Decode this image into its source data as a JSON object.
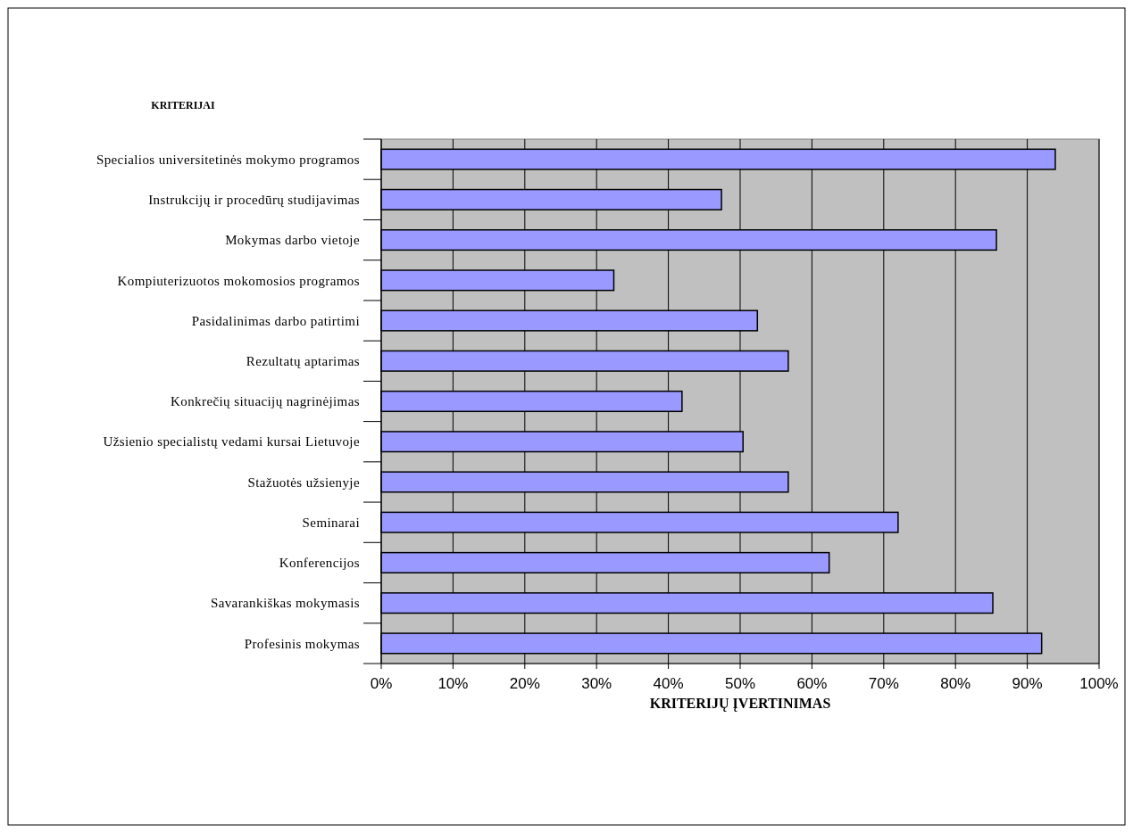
{
  "chart_data": {
    "type": "bar",
    "orientation": "horizontal",
    "ylabel": "KRITERIJAI",
    "xlabel": "KRITERIJŲ ĮVERTINIMAS",
    "categories": [
      "Specialios universitetinės mokymo programos",
      "Instrukcijų ir procedūrų studijavimas",
      "Mokymas darbo vietoje",
      "Kompiuterizuotos mokomosios programos ",
      "Pasidalinimas darbo patirtimi",
      "Rezultatų aptarimas ",
      "Konkrečių situacijų nagrinėjimas",
      "Užsienio specialistų vedami kursai Lietuvoje",
      "Stažuotės užsienyje",
      "Seminarai",
      "Konferencijos",
      "Savarankiškas mokymasis",
      "Profesinis mokymas"
    ],
    "values": [
      93.9,
      47.4,
      85.7,
      32.4,
      52.4,
      56.7,
      41.9,
      50.4,
      56.7,
      72.0,
      62.4,
      85.2,
      92.0
    ],
    "color": "#9999ff",
    "xlim": [
      0,
      100
    ],
    "xticks": [
      {
        "value": 0,
        "label": "0%"
      },
      {
        "value": 10,
        "label": "10%"
      },
      {
        "value": 20,
        "label": "20%"
      },
      {
        "value": 30,
        "label": "30%"
      },
      {
        "value": 40,
        "label": "40%"
      },
      {
        "value": 50,
        "label": "50%"
      },
      {
        "value": 60,
        "label": "60%"
      },
      {
        "value": 70,
        "label": "70%"
      },
      {
        "value": 80,
        "label": "80%"
      },
      {
        "value": 90,
        "label": "90%"
      },
      {
        "value": 100,
        "label": "100%"
      }
    ],
    "grid": "x"
  }
}
